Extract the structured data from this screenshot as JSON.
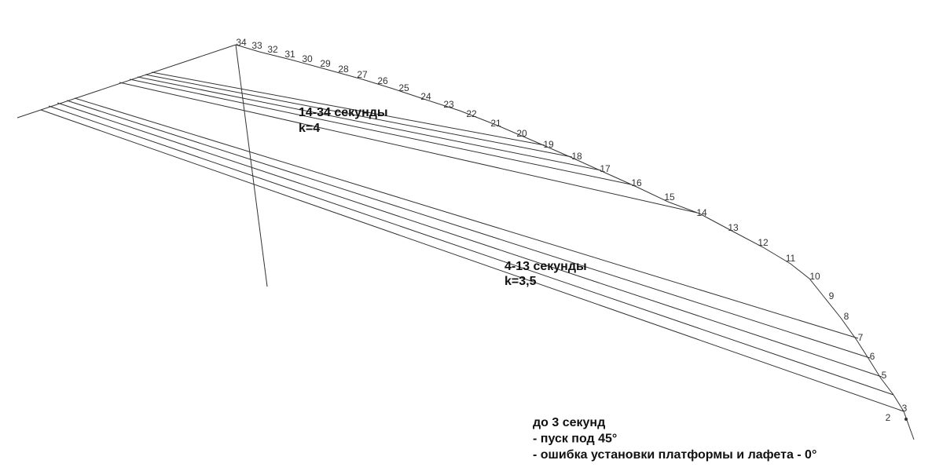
{
  "point_labels": [
    "34",
    "33",
    "32",
    "31",
    "30",
    "29",
    "28",
    "27",
    "26",
    "25",
    "24",
    "23",
    "22",
    "21",
    "20",
    "19",
    "18",
    "17",
    "16",
    "15",
    "14",
    "13",
    "12",
    "11",
    "10",
    "9",
    "8",
    "7",
    "6",
    "5",
    "3",
    "2"
  ],
  "annotations": [
    {
      "lines": [
        "14-34 секунды",
        "k=4"
      ]
    },
    {
      "lines": [
        "4-13 секунды",
        "k=3,5"
      ]
    },
    {
      "lines": [
        "до 3 секунд",
        "- пуск под 45°",
        "- ошибка установки платформы и лафета - 0°"
      ]
    }
  ]
}
